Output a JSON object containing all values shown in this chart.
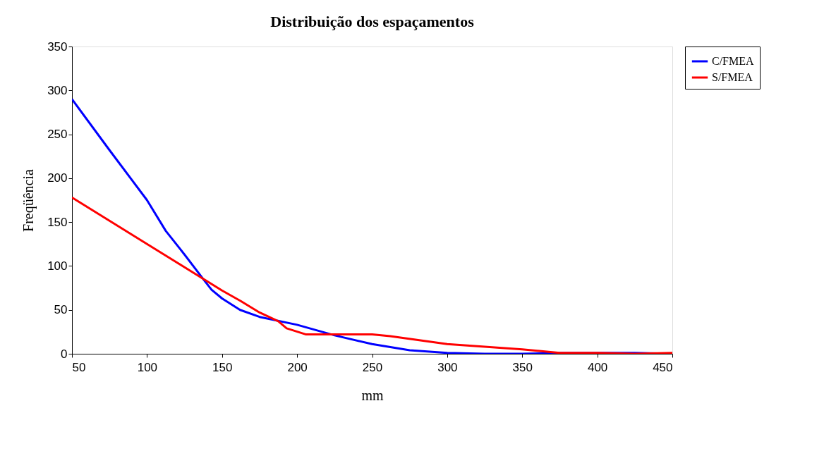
{
  "chart_data": {
    "type": "line",
    "title": "Distribuição dos espaçamentos",
    "xlabel": "mm",
    "ylabel": "Freqüência",
    "xlim": [
      50,
      450
    ],
    "xticks": [
      50,
      100,
      150,
      200,
      250,
      300,
      350,
      400,
      450
    ],
    "ylim": [
      0,
      350
    ],
    "yticks": [
      0,
      50,
      100,
      150,
      200,
      250,
      300,
      350
    ],
    "grid": false,
    "legend": "right",
    "marker": "none",
    "line_style": "solid",
    "series": [
      {
        "name": "C/FMEA",
        "color": "#0000ff",
        "x": [
          50,
          75,
          100,
          112.5,
          125,
          137.5,
          143,
          150,
          162,
          175,
          200,
          225,
          250,
          275,
          300,
          325,
          350,
          375,
          400,
          425,
          450
        ],
        "values": [
          290,
          232,
          175,
          140,
          113,
          85,
          73,
          63,
          50,
          42,
          33,
          21,
          11,
          4,
          1,
          0,
          0,
          1,
          1,
          1,
          0
        ]
      },
      {
        "name": "S/FMEA",
        "color": "#ff0000",
        "x": [
          50,
          100,
          150,
          162.5,
          175,
          187.5,
          193,
          206,
          225,
          250,
          262,
          300,
          350,
          375,
          400,
          425,
          450
        ],
        "values": [
          178,
          125,
          72,
          60,
          47,
          37,
          29,
          22,
          22,
          22,
          20,
          11,
          5,
          1,
          1,
          0,
          1
        ]
      }
    ]
  }
}
